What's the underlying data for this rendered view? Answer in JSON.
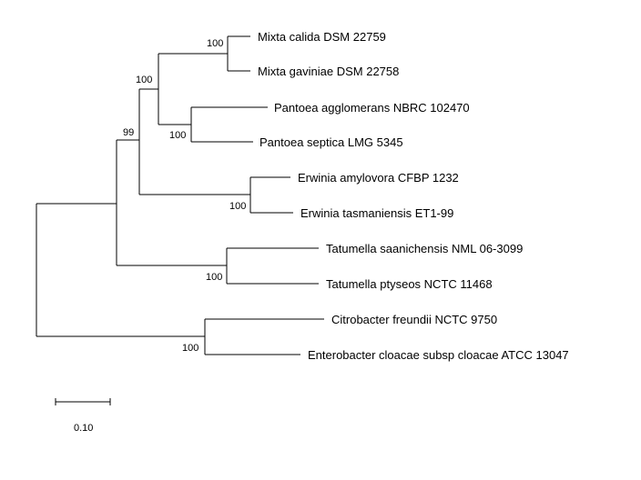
{
  "tree": {
    "leaves": [
      "Mixta calida DSM 22759",
      "Mixta gaviniae DSM 22758",
      "Pantoea agglomerans NBRC 102470",
      "Pantoea septica LMG 5345",
      "Erwinia amylovora CFBP 1232",
      "Erwinia tasmaniensis ET1-99",
      "Tatumella saanichensis NML 06-3099",
      "Tatumella ptyseos NCTC 11468",
      "Citrobacter freundii NCTC 9750",
      "Enterobacter cloacae subsp cloacae ATCC 13047"
    ],
    "bootstrap_values": [
      "100",
      "100",
      "100",
      "99",
      "100",
      "100",
      "100"
    ],
    "scale_bar_label": "0.10",
    "line_color": "#000000"
  }
}
